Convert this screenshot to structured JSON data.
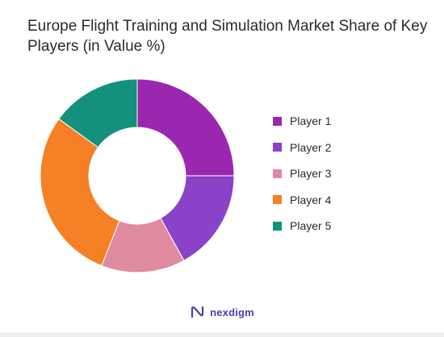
{
  "chart_data": {
    "type": "pie",
    "title": "Europe Flight Training and Simulation Market Share of Key Players (in Value %)",
    "donut": true,
    "legend_position": "right",
    "categories": [
      "Player 1",
      "Player 2",
      "Player 3",
      "Player 4",
      "Player 5"
    ],
    "values": [
      25,
      17,
      14,
      29,
      15
    ],
    "colors": [
      "#9b27b0",
      "#8a42c8",
      "#e08aa0",
      "#f58025",
      "#13917d"
    ]
  },
  "brand": {
    "name": "nexdigm",
    "logo_color": "#4a3fb0"
  }
}
